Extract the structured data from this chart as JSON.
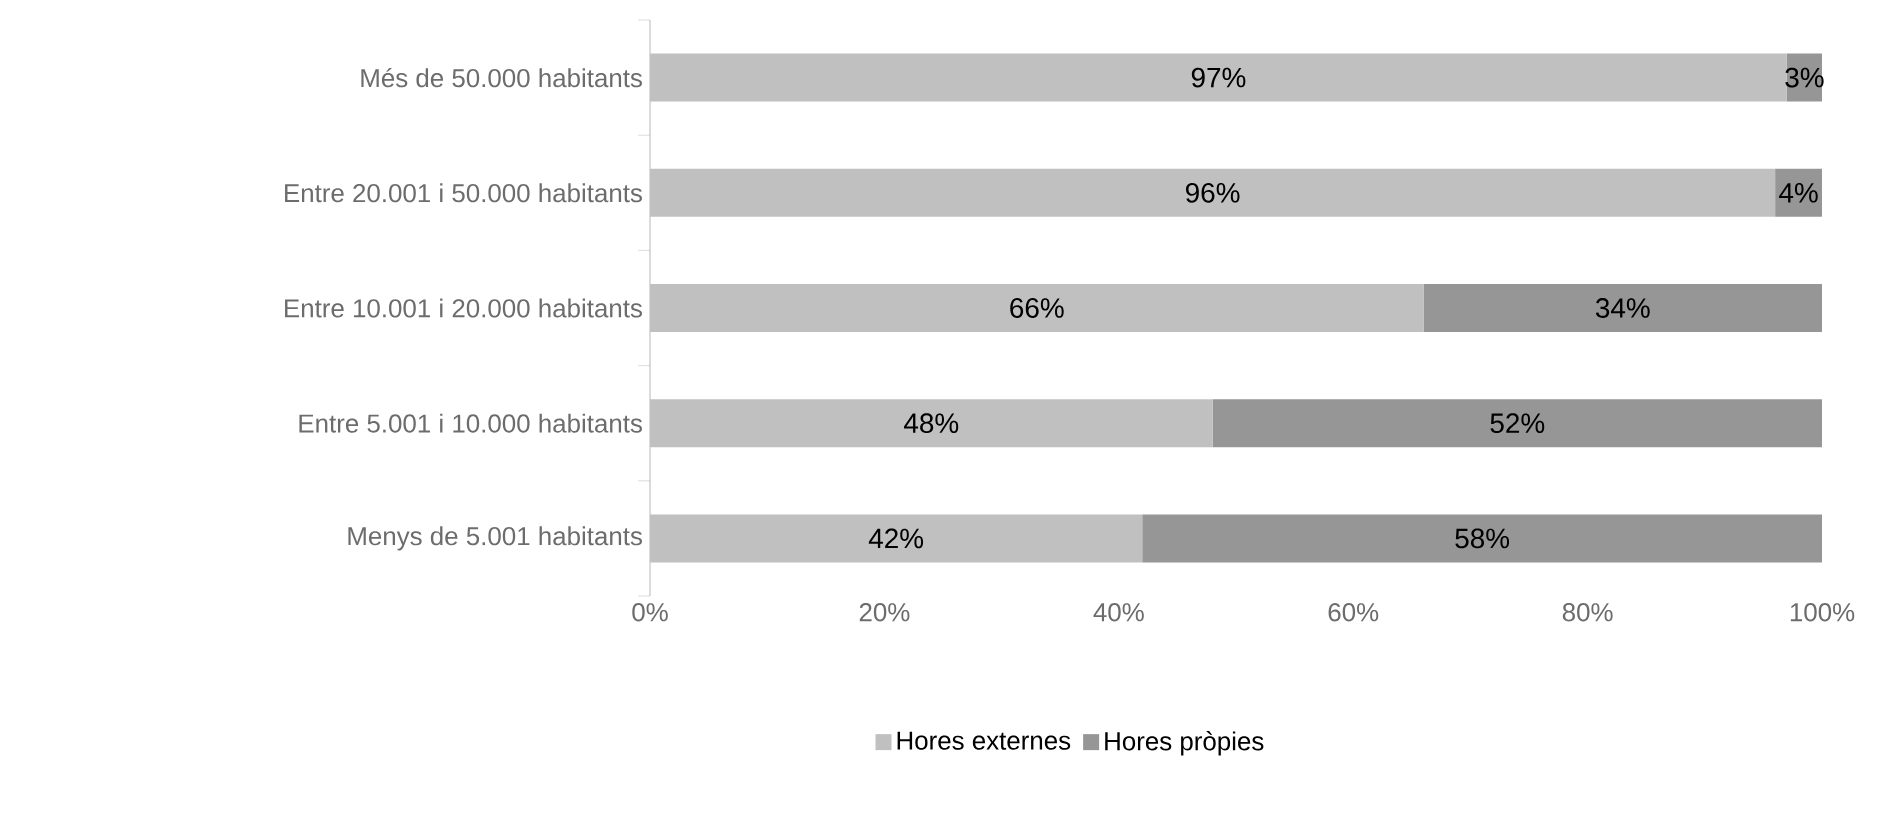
{
  "chart_data": {
    "type": "bar",
    "orientation": "horizontal",
    "stacked": true,
    "categories": [
      "Més de 50.000 habitants",
      "Entre 20.001 i 50.000 habitants",
      "Entre 10.001 i 20.000 habitants",
      "Entre 5.001 i 10.000 habitants",
      "Menys de 5.001 habitants"
    ],
    "series": [
      {
        "name": "Hores externes",
        "color": "#c0c0c0",
        "values": [
          97,
          96,
          66,
          48,
          42
        ],
        "value_labels": [
          "97%",
          "96%",
          "66%",
          "48%",
          "42%"
        ]
      },
      {
        "name": "Hores pròpies",
        "color": "#969696",
        "values": [
          3,
          4,
          34,
          52,
          58
        ],
        "value_labels": [
          "3%",
          "4%",
          "34%",
          "52%",
          "58%"
        ]
      }
    ],
    "xlim": [
      0,
      100
    ],
    "xticks": [
      {
        "value": 0,
        "label": "0%"
      },
      {
        "value": 20,
        "label": "20%"
      },
      {
        "value": 40,
        "label": "40%"
      },
      {
        "value": 60,
        "label": "60%"
      },
      {
        "value": 80,
        "label": "80%"
      },
      {
        "value": 100,
        "label": "100%"
      }
    ],
    "legend": "bottom",
    "grid": false
  }
}
